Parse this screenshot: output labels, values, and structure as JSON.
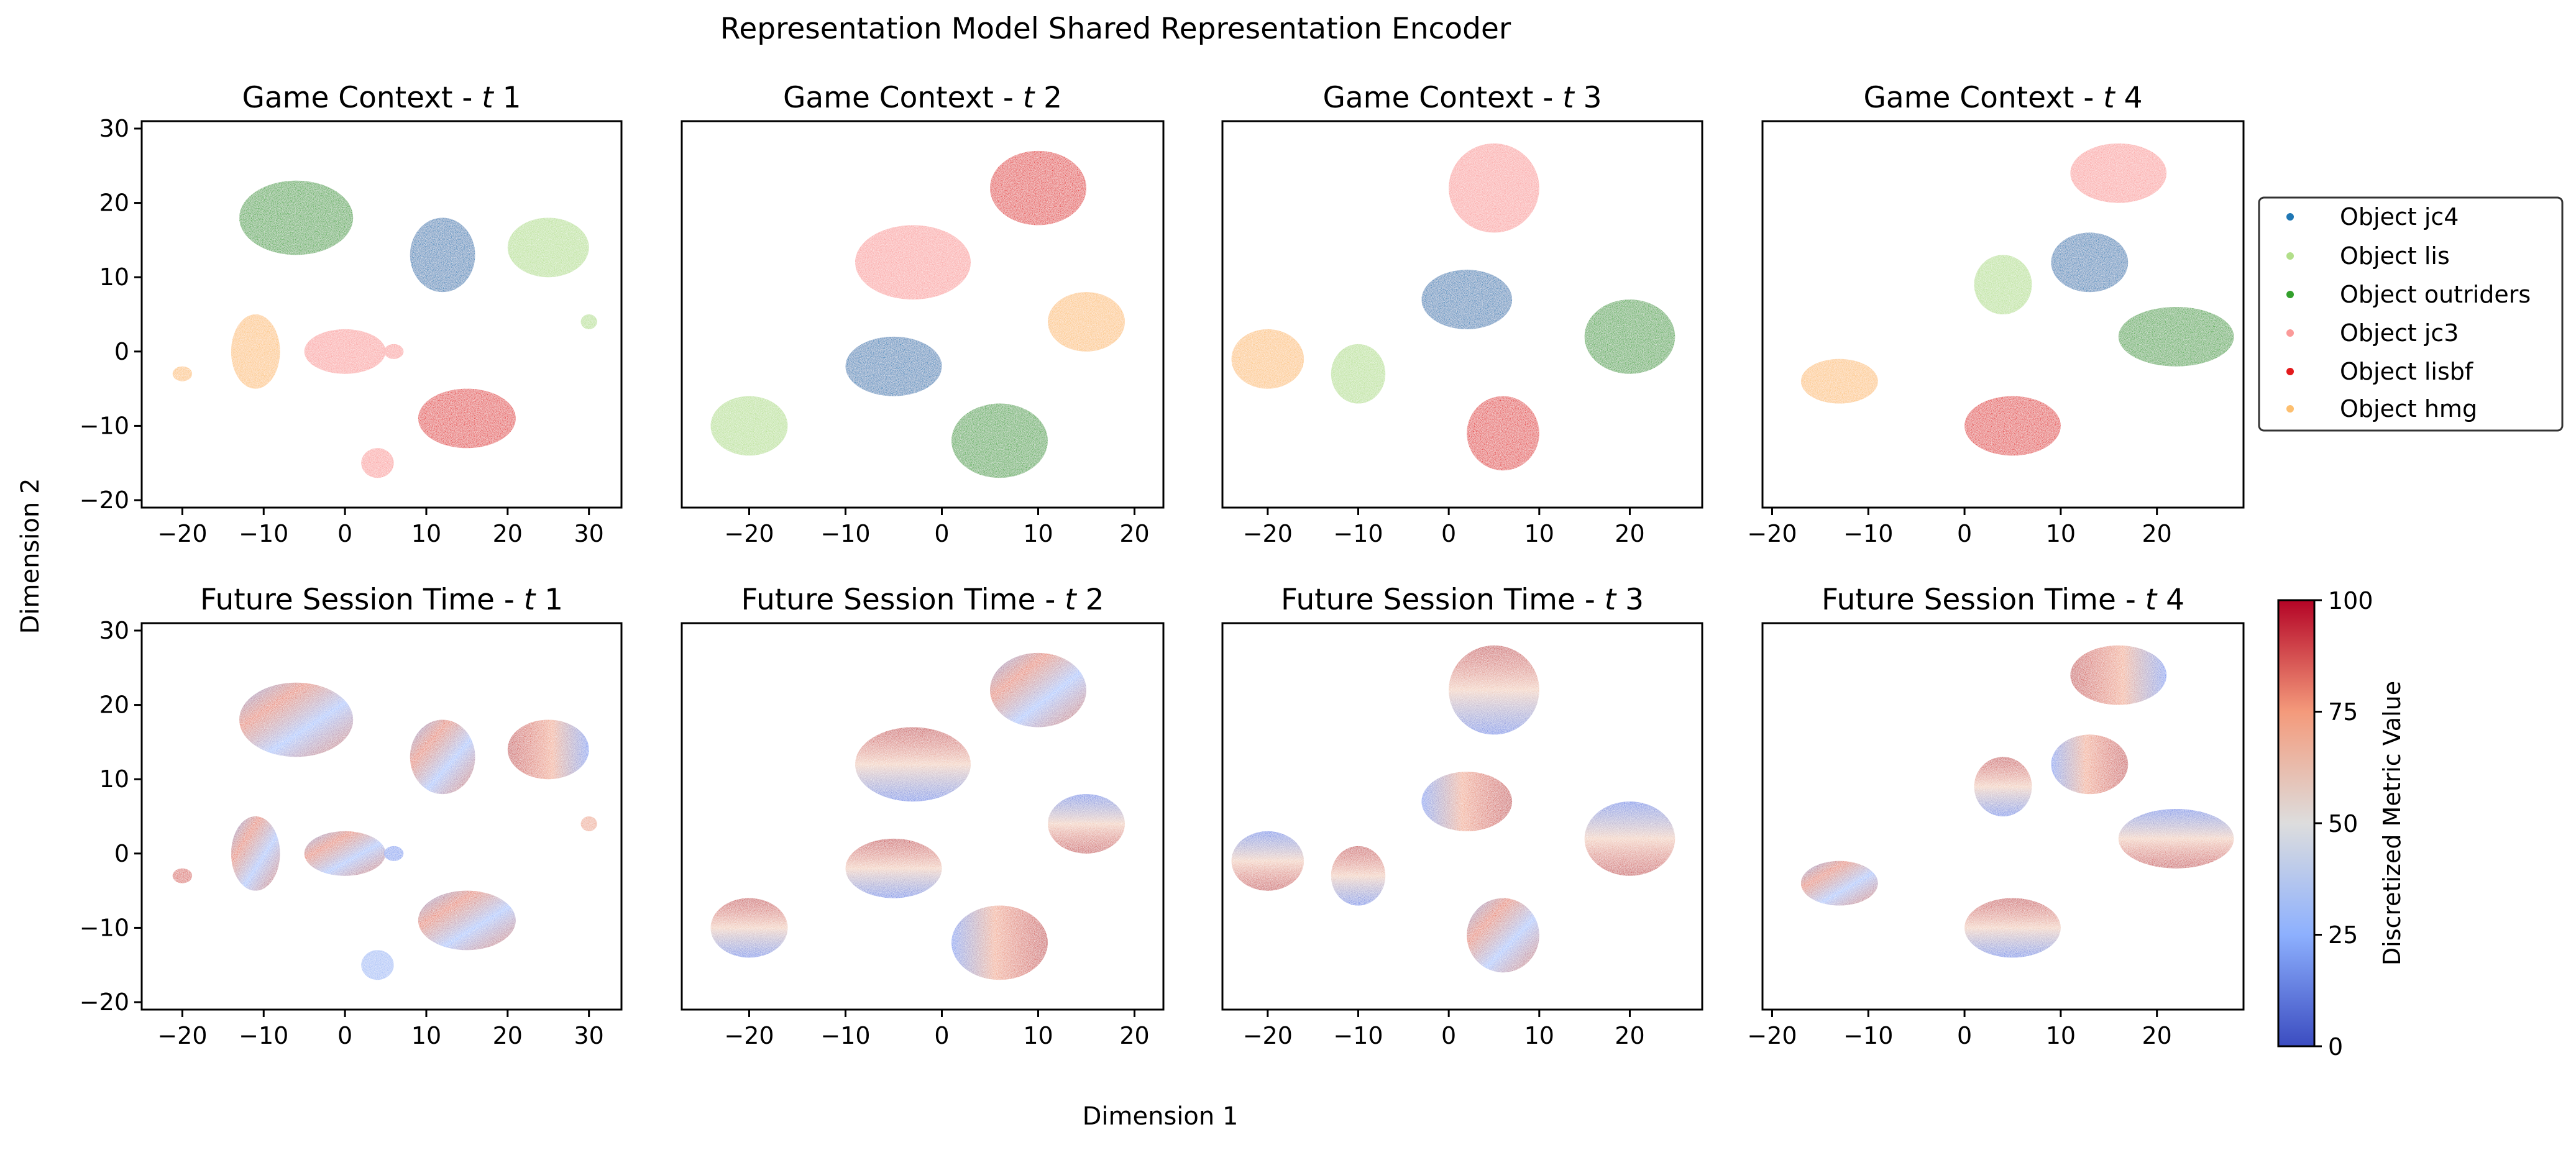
{
  "figure": {
    "suptitle": "Representation Model Shared Representation Encoder",
    "xlabel": "Dimension 1",
    "ylabel": "Dimension 2"
  },
  "legend": {
    "placement": "right of top row",
    "entries": [
      {
        "label": "Object jc4",
        "color": "#1f77b4"
      },
      {
        "label": "Object lis",
        "color": "#b2df8a"
      },
      {
        "label": "Object outriders",
        "color": "#33a02c"
      },
      {
        "label": "Object jc3",
        "color": "#fb9a99"
      },
      {
        "label": "Object lisbf",
        "color": "#e31a1c"
      },
      {
        "label": "Object hmg",
        "color": "#fdbf6f"
      }
    ]
  },
  "colorbar": {
    "label": "Discretized Metric Value",
    "ticks": [
      "0",
      "25",
      "50",
      "75",
      "100"
    ],
    "range": [
      0,
      100
    ],
    "colormap": "coolwarm",
    "low_color": "#3b4cc0",
    "mid_color": "#dddddd",
    "high_color": "#b40426"
  },
  "chart_data": [
    {
      "type": "scatter",
      "row": "Game Context",
      "timestep": "1",
      "color_by": "object",
      "title_prefix": "Game Context - ",
      "title_t": "t",
      "title_suffix": " 1",
      "xlim": [
        -25,
        34
      ],
      "ylim": [
        -21,
        31
      ],
      "xticks": [
        -20,
        -10,
        0,
        10,
        20,
        30
      ],
      "yticks": [
        -20,
        -10,
        0,
        10,
        20,
        30
      ],
      "show_yticks": true,
      "clusters": [
        {
          "object": "Object outriders",
          "x": -6,
          "y": 18,
          "rx": 7,
          "ry": 5
        },
        {
          "object": "Object jc4",
          "x": 12,
          "y": 13,
          "rx": 4,
          "ry": 5
        },
        {
          "object": "Object lis",
          "x": 25,
          "y": 14,
          "rx": 5,
          "ry": 4
        },
        {
          "object": "Object hmg",
          "x": -11,
          "y": 0,
          "rx": 3,
          "ry": 5
        },
        {
          "object": "Object hmg",
          "x": -20,
          "y": -3,
          "rx": 1.2,
          "ry": 1
        },
        {
          "object": "Object jc3",
          "x": 0,
          "y": 0,
          "rx": 5,
          "ry": 3
        },
        {
          "object": "Object jc3",
          "x": 4,
          "y": -15,
          "rx": 2,
          "ry": 2
        },
        {
          "object": "Object jc3",
          "x": 6,
          "y": 0,
          "rx": 1.2,
          "ry": 1
        },
        {
          "object": "Object lisbf",
          "x": 15,
          "y": -9,
          "rx": 6,
          "ry": 4
        },
        {
          "object": "Object lis",
          "x": 30,
          "y": 4,
          "rx": 1,
          "ry": 1
        }
      ],
      "value_clusters": []
    },
    {
      "type": "scatter",
      "row": "Game Context",
      "timestep": "2",
      "color_by": "object",
      "title_prefix": "Game Context - ",
      "title_t": "t",
      "title_suffix": " 2",
      "xlim": [
        -27,
        23
      ],
      "ylim": [
        -21,
        31
      ],
      "xticks": [
        -20,
        -10,
        0,
        10,
        20
      ],
      "yticks": [
        -20,
        -10,
        0,
        10,
        20,
        30
      ],
      "show_yticks": false,
      "clusters": [
        {
          "object": "Object lisbf",
          "x": 10,
          "y": 22,
          "rx": 5,
          "ry": 5
        },
        {
          "object": "Object jc3",
          "x": -3,
          "y": 12,
          "rx": 6,
          "ry": 5
        },
        {
          "object": "Object hmg",
          "x": 15,
          "y": 4,
          "rx": 4,
          "ry": 4
        },
        {
          "object": "Object jc4",
          "x": -5,
          "y": -2,
          "rx": 5,
          "ry": 4
        },
        {
          "object": "Object lis",
          "x": -20,
          "y": -10,
          "rx": 4,
          "ry": 4
        },
        {
          "object": "Object outriders",
          "x": 6,
          "y": -12,
          "rx": 5,
          "ry": 5
        }
      ],
      "value_clusters": []
    },
    {
      "type": "scatter",
      "row": "Game Context",
      "timestep": "3",
      "color_by": "object",
      "title_prefix": "Game Context - ",
      "title_t": "t",
      "title_suffix": " 3",
      "xlim": [
        -25,
        28
      ],
      "ylim": [
        -21,
        31
      ],
      "xticks": [
        -20,
        -10,
        0,
        10,
        20
      ],
      "yticks": [
        -20,
        -10,
        0,
        10,
        20,
        30
      ],
      "show_yticks": false,
      "clusters": [
        {
          "object": "Object jc3",
          "x": 5,
          "y": 22,
          "rx": 5,
          "ry": 6
        },
        {
          "object": "Object jc4",
          "x": 2,
          "y": 7,
          "rx": 5,
          "ry": 4
        },
        {
          "object": "Object outriders",
          "x": 20,
          "y": 2,
          "rx": 5,
          "ry": 5
        },
        {
          "object": "Object hmg",
          "x": -20,
          "y": -1,
          "rx": 4,
          "ry": 4
        },
        {
          "object": "Object lis",
          "x": -10,
          "y": -3,
          "rx": 3,
          "ry": 4
        },
        {
          "object": "Object lisbf",
          "x": 6,
          "y": -11,
          "rx": 4,
          "ry": 5
        }
      ],
      "value_clusters": []
    },
    {
      "type": "scatter",
      "row": "Game Context",
      "timestep": "4",
      "color_by": "object",
      "title_prefix": "Game Context - ",
      "title_t": "t",
      "title_suffix": " 4",
      "xlim": [
        -21,
        29
      ],
      "ylim": [
        -21,
        31
      ],
      "xticks": [
        -20,
        -10,
        0,
        10,
        20
      ],
      "yticks": [
        -20,
        -10,
        0,
        10,
        20,
        30
      ],
      "show_yticks": false,
      "clusters": [
        {
          "object": "Object jc3",
          "x": 16,
          "y": 24,
          "rx": 5,
          "ry": 4
        },
        {
          "object": "Object jc4",
          "x": 13,
          "y": 12,
          "rx": 4,
          "ry": 4
        },
        {
          "object": "Object lis",
          "x": 4,
          "y": 9,
          "rx": 3,
          "ry": 4
        },
        {
          "object": "Object outriders",
          "x": 22,
          "y": 2,
          "rx": 6,
          "ry": 4
        },
        {
          "object": "Object hmg",
          "x": -13,
          "y": -4,
          "rx": 4,
          "ry": 3
        },
        {
          "object": "Object lisbf",
          "x": 5,
          "y": -10,
          "rx": 5,
          "ry": 4
        }
      ],
      "value_clusters": []
    },
    {
      "type": "scatter",
      "row": "Future Session Time",
      "timestep": "1",
      "color_by": "value",
      "title_prefix": "Future Session Time - ",
      "title_t": "t",
      "title_suffix": " 1",
      "xlim": [
        -25,
        34
      ],
      "ylim": [
        -21,
        31
      ],
      "xticks": [
        -20,
        -10,
        0,
        10,
        20,
        30
      ],
      "yticks": [
        -20,
        -10,
        0,
        10,
        20,
        30
      ],
      "show_yticks": true,
      "clusters": [],
      "value_clusters": [
        {
          "x": -6,
          "y": 18,
          "rx": 7,
          "ry": 5,
          "value": 50,
          "gradient": "mixed"
        },
        {
          "x": 12,
          "y": 13,
          "rx": 4,
          "ry": 5,
          "value": 45,
          "gradient": "mixed"
        },
        {
          "x": 25,
          "y": 14,
          "rx": 5,
          "ry": 4,
          "value": 75,
          "gradient": "red-left"
        },
        {
          "x": -11,
          "y": 0,
          "rx": 3,
          "ry": 5,
          "value": 40,
          "gradient": "mixed"
        },
        {
          "x": -20,
          "y": -3,
          "rx": 1.2,
          "ry": 1,
          "value": 85,
          "gradient": "flat"
        },
        {
          "x": 0,
          "y": 0,
          "rx": 5,
          "ry": 3,
          "value": 60,
          "gradient": "mixed"
        },
        {
          "x": 4,
          "y": -15,
          "rx": 2,
          "ry": 2,
          "value": 30,
          "gradient": "flat"
        },
        {
          "x": 6,
          "y": 0,
          "rx": 1.2,
          "ry": 1,
          "value": 20,
          "gradient": "flat"
        },
        {
          "x": 15,
          "y": -9,
          "rx": 6,
          "ry": 4,
          "value": 55,
          "gradient": "mixed"
        },
        {
          "x": 30,
          "y": 4,
          "rx": 1,
          "ry": 1,
          "value": 70,
          "gradient": "flat"
        }
      ]
    },
    {
      "type": "scatter",
      "row": "Future Session Time",
      "timestep": "2",
      "color_by": "value",
      "title_prefix": "Future Session Time - ",
      "title_t": "t",
      "title_suffix": " 2",
      "xlim": [
        -27,
        23
      ],
      "ylim": [
        -21,
        31
      ],
      "xticks": [
        -20,
        -10,
        0,
        10,
        20
      ],
      "yticks": [
        -20,
        -10,
        0,
        10,
        20,
        30
      ],
      "show_yticks": false,
      "clusters": [],
      "value_clusters": [
        {
          "x": 10,
          "y": 22,
          "rx": 5,
          "ry": 5,
          "value": 45,
          "gradient": "mixed"
        },
        {
          "x": -3,
          "y": 12,
          "rx": 6,
          "ry": 5,
          "value": 55,
          "gradient": "red-top"
        },
        {
          "x": 15,
          "y": 4,
          "rx": 4,
          "ry": 4,
          "value": 55,
          "gradient": "red-bottom"
        },
        {
          "x": -5,
          "y": -2,
          "rx": 5,
          "ry": 4,
          "value": 55,
          "gradient": "red-top"
        },
        {
          "x": -20,
          "y": -10,
          "rx": 4,
          "ry": 4,
          "value": 55,
          "gradient": "red-top"
        },
        {
          "x": 6,
          "y": -12,
          "rx": 5,
          "ry": 5,
          "value": 55,
          "gradient": "red-right"
        }
      ]
    },
    {
      "type": "scatter",
      "row": "Future Session Time",
      "timestep": "3",
      "color_by": "value",
      "title_prefix": "Future Session Time - ",
      "title_t": "t",
      "title_suffix": " 3",
      "xlim": [
        -25,
        28
      ],
      "ylim": [
        -21,
        31
      ],
      "xticks": [
        -20,
        -10,
        0,
        10,
        20
      ],
      "yticks": [
        -20,
        -10,
        0,
        10,
        20,
        30
      ],
      "show_yticks": false,
      "clusters": [],
      "value_clusters": [
        {
          "x": 5,
          "y": 22,
          "rx": 5,
          "ry": 6,
          "value": 55,
          "gradient": "red-top"
        },
        {
          "x": 2,
          "y": 7,
          "rx": 5,
          "ry": 4,
          "value": 50,
          "gradient": "red-right"
        },
        {
          "x": 20,
          "y": 2,
          "rx": 5,
          "ry": 5,
          "value": 55,
          "gradient": "red-bottom"
        },
        {
          "x": -20,
          "y": -1,
          "rx": 4,
          "ry": 4,
          "value": 50,
          "gradient": "red-bottom"
        },
        {
          "x": -10,
          "y": -3,
          "rx": 3,
          "ry": 4,
          "value": 50,
          "gradient": "red-top"
        },
        {
          "x": 6,
          "y": -11,
          "rx": 4,
          "ry": 5,
          "value": 55,
          "gradient": "mixed"
        }
      ]
    },
    {
      "type": "scatter",
      "row": "Future Session Time",
      "timestep": "4",
      "color_by": "value",
      "title_prefix": "Future Session Time - ",
      "title_t": "t",
      "title_suffix": " 4",
      "xlim": [
        -21,
        29
      ],
      "ylim": [
        -21,
        31
      ],
      "xticks": [
        -20,
        -10,
        0,
        10,
        20
      ],
      "yticks": [
        -20,
        -10,
        0,
        10,
        20,
        30
      ],
      "show_yticks": false,
      "clusters": [],
      "value_clusters": [
        {
          "x": 16,
          "y": 24,
          "rx": 5,
          "ry": 4,
          "value": 60,
          "gradient": "red-left"
        },
        {
          "x": 13,
          "y": 12,
          "rx": 4,
          "ry": 4,
          "value": 55,
          "gradient": "red-right"
        },
        {
          "x": 4,
          "y": 9,
          "rx": 3,
          "ry": 4,
          "value": 50,
          "gradient": "red-top"
        },
        {
          "x": 22,
          "y": 2,
          "rx": 6,
          "ry": 4,
          "value": 55,
          "gradient": "red-bottom"
        },
        {
          "x": -13,
          "y": -4,
          "rx": 4,
          "ry": 3,
          "value": 45,
          "gradient": "mixed"
        },
        {
          "x": 5,
          "y": -10,
          "rx": 5,
          "ry": 4,
          "value": 55,
          "gradient": "red-top"
        }
      ]
    }
  ]
}
